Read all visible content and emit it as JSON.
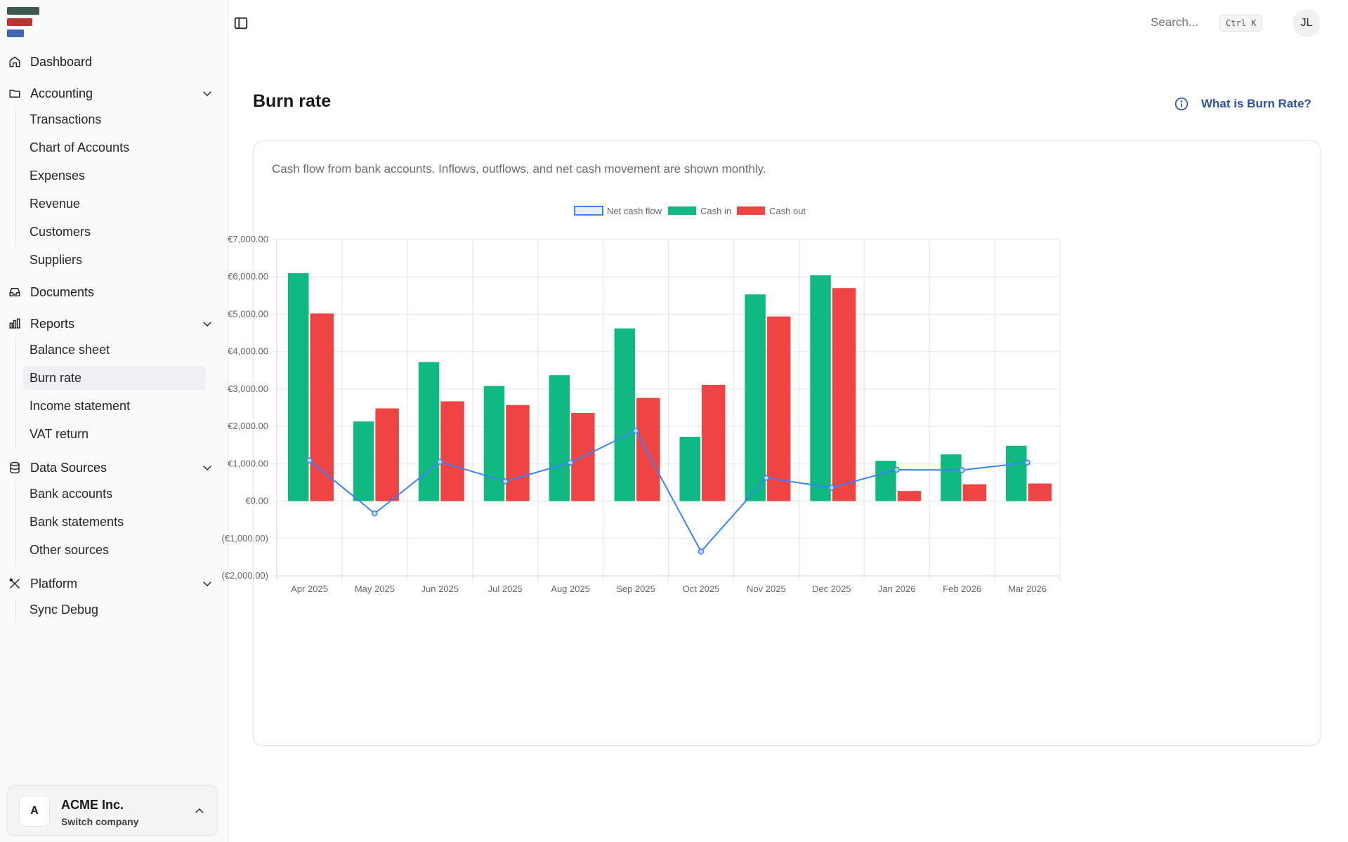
{
  "sidebar": {
    "nav": [
      {
        "label": "Dashboard",
        "icon": "home-icon"
      },
      {
        "label": "Accounting",
        "icon": "folder-icon",
        "expandable": true
      },
      {
        "label": "Documents",
        "icon": "inbox-icon"
      },
      {
        "label": "Reports",
        "icon": "bar-chart-icon",
        "expandable": true
      },
      {
        "label": "Data Sources",
        "icon": "database-icon",
        "expandable": true
      },
      {
        "label": "Platform",
        "icon": "tools-icon",
        "expandable": true
      }
    ],
    "accounting_items": [
      "Transactions",
      "Chart of Accounts",
      "Expenses",
      "Revenue",
      "Customers",
      "Suppliers"
    ],
    "reports_items": [
      "Balance sheet",
      "Burn rate",
      "Income statement",
      "VAT return"
    ],
    "data_sources_items": [
      "Bank accounts",
      "Bank statements",
      "Other sources"
    ],
    "platform_items": [
      "Sync Debug"
    ],
    "active_item": "Burn rate",
    "company": {
      "initial": "A",
      "name": "ACME Inc.",
      "subtitle": "Switch company"
    }
  },
  "topbar": {
    "search_placeholder": "Search...",
    "shortcut": "Ctrl K",
    "user_initials": "JL"
  },
  "page": {
    "title": "Burn rate",
    "help_link": "What is Burn Rate?",
    "description": "Cash flow from bank accounts. Inflows, outflows, and net cash movement are shown monthly."
  },
  "colors": {
    "cash_in": "#10b981",
    "cash_out": "#ef4444",
    "net": "#3b82f6",
    "logo": [
      "#3f5a4a",
      "#b7342f",
      "#3f67b5"
    ]
  },
  "chart_data": {
    "type": "bar",
    "categories": [
      "Apr 2025",
      "May 2025",
      "Jun 2025",
      "Jul 2025",
      "Aug 2025",
      "Sep 2025",
      "Oct 2025",
      "Nov 2025",
      "Dec 2025",
      "Jan 2026",
      "Feb 2026",
      "Mar 2026"
    ],
    "series": [
      {
        "name": "Net cash flow",
        "type": "line",
        "values": [
          1090,
          -330,
          1050,
          530,
          1030,
          1880,
          -1350,
          620,
          360,
          840,
          830,
          1030
        ]
      },
      {
        "name": "Cash in",
        "type": "bar",
        "values": [
          6100,
          2130,
          3720,
          3080,
          3370,
          4620,
          1720,
          5530,
          6040,
          1080,
          1250,
          1480
        ]
      },
      {
        "name": "Cash out",
        "type": "bar",
        "values": [
          5020,
          2480,
          2670,
          2570,
          2360,
          2760,
          3110,
          4940,
          5700,
          270,
          450,
          470
        ]
      }
    ],
    "yticks": [
      "€7,000.00",
      "€6,000.00",
      "€5,000.00",
      "€4,000.00",
      "€3,000.00",
      "€2,000.00",
      "€1,000.00",
      "€0.00",
      "(€1,000.00)",
      "(€2,000.00)"
    ],
    "ylim": [
      -2000,
      7000
    ],
    "legend": "top-center",
    "grid": true
  }
}
